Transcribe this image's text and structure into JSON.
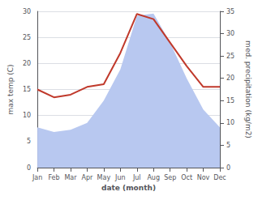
{
  "chart_data": {
    "type": "line",
    "xlabel": "date (month)",
    "ylabel": "max temp (C)",
    "y2label": "med. precipitation (kg/m2)",
    "categories": [
      "Jan",
      "Feb",
      "Mar",
      "Apr",
      "May",
      "Jun",
      "Jul",
      "Aug",
      "Sep",
      "Oct",
      "Nov",
      "Dec"
    ],
    "series": [
      {
        "type": "area",
        "color": "#b8c8f0",
        "axis": "y2",
        "values": [
          9.0,
          8.0,
          8.5,
          10.0,
          15.0,
          22.0,
          34.0,
          34.5,
          28.0,
          20.0,
          13.0,
          9.0
        ]
      },
      {
        "type": "line",
        "color": "#c0392b",
        "values": [
          15.0,
          13.5,
          14.0,
          15.5,
          16.0,
          22.0,
          29.5,
          28.5,
          24.0,
          19.5,
          15.5,
          15.5
        ]
      }
    ],
    "ylim": [
      0,
      30
    ],
    "yticks": [
      0,
      5,
      10,
      15,
      20,
      25,
      30
    ],
    "y2lim": [
      0,
      35
    ],
    "y2ticks": [
      0,
      5,
      10,
      15,
      20,
      25,
      30,
      35
    ],
    "grid": true
  }
}
